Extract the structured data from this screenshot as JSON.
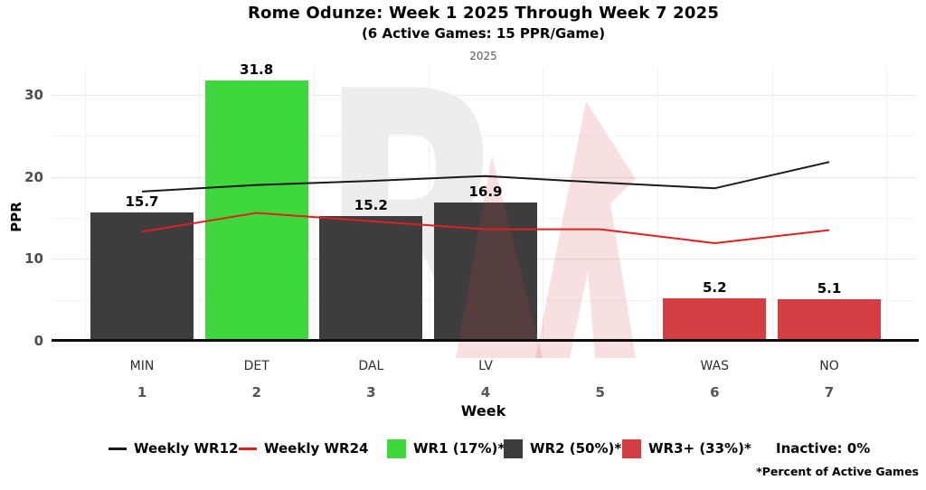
{
  "chart_data": {
    "type": "bar",
    "title": "Rome Odunze: Week 1 2025 Through Week 7 2025",
    "subtitle": "(6 Active Games: 15 PPR/Game)",
    "facet_label": "2025",
    "xlabel": "Week",
    "ylabel": "PPR",
    "ylim": [
      0,
      33.4
    ],
    "yticks": [
      0,
      10,
      20,
      30
    ],
    "yticks_minor": [
      5,
      15,
      25
    ],
    "grid": true,
    "legend_position": "bottom",
    "categories": [
      {
        "week": "1",
        "team": "MIN"
      },
      {
        "week": "2",
        "team": "DET"
      },
      {
        "week": "3",
        "team": "DAL"
      },
      {
        "week": "4",
        "team": "LV"
      },
      {
        "week": "5",
        "team": ""
      },
      {
        "week": "6",
        "team": "WAS"
      },
      {
        "week": "7",
        "team": "NO"
      }
    ],
    "bars": {
      "name": "Weekly PPR",
      "values": [
        15.7,
        31.8,
        15.2,
        16.9,
        null,
        5.2,
        5.1
      ],
      "tiers": [
        "WR2",
        "WR1",
        "WR2",
        "WR2",
        null,
        "WR3+",
        "WR3+"
      ]
    },
    "tier_colors": {
      "WR1": "#3ed83e",
      "WR2": "#3d3d3d",
      "WR3+": "#d43e42"
    },
    "series": [
      {
        "name": "Weekly WR12",
        "color": "#1a1a1a",
        "values": [
          18.2,
          19.0,
          19.5,
          20.1,
          19.3,
          18.6,
          21.8
        ]
      },
      {
        "name": "Weekly WR24",
        "color": "#dd2020",
        "values": [
          13.3,
          15.6,
          14.6,
          13.6,
          13.6,
          11.9,
          13.5
        ]
      }
    ],
    "legend": {
      "items": [
        {
          "label": "Weekly WR12",
          "swatch": "line",
          "color": "#1a1a1a"
        },
        {
          "label": "Weekly WR24",
          "swatch": "line",
          "color": "#dd2020"
        },
        {
          "label": "WR1 (17%)*",
          "swatch": "square",
          "color": "#3ed83e"
        },
        {
          "label": "WR2 (50%)*",
          "swatch": "square",
          "color": "#3d3d3d"
        },
        {
          "label": "WR3+ (33%)*",
          "swatch": "square",
          "color": "#d43e42"
        },
        {
          "label": "Inactive: 0%",
          "swatch": "none",
          "color": ""
        }
      ]
    },
    "footnote": "*Percent of Active Games",
    "watermark": {
      "letter": "R",
      "letter_color": "#ededed",
      "bolt_color": "#d43e42"
    }
  }
}
